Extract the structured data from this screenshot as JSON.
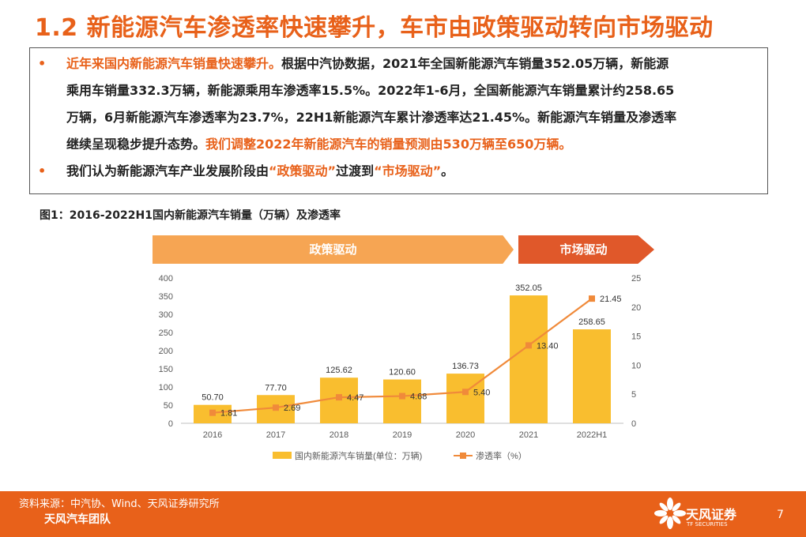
{
  "slide": {
    "title": "1.2 新能源汽车渗透率快速攀升，车市由政策驱动转向市场驱动",
    "bullets": {
      "b1_lead": "近年来国内新能源汽车销量快速攀升。",
      "b1_l1_rest": "根据中汽协数据，2021年全国新能源汽车销量352.05万辆，新能源",
      "b1_l2": "乘用车销量332.3万辆，新能源乘用车渗透率15.5%。2022年1-6月，全国新能源汽车销量累计约258.65",
      "b1_l3": "万辆，6月新能源汽车渗透率为23.7%，22H1新能源汽车累计渗透率达21.45%。新能源汽车销量及渗透率",
      "b1_l4_a": "继续呈现稳步提升态势。",
      "b1_l4_b": "我们调整2022年新能源汽车的销量预测由530万辆至650万辆。",
      "b2_a": "我们认为新能源汽车产业发展阶段由",
      "b2_b": "“政策驱动”",
      "b2_c": "过渡到",
      "b2_d": "“市场驱动”",
      "b2_e": "。",
      "marker": "•"
    },
    "figure_caption": "图1：2016-2022H1国内新能源汽车销量（万辆）及渗透率",
    "phases": {
      "policy": "政策驱动",
      "market": "市场驱动"
    },
    "footer": {
      "source": "资料来源：中汽协、Wind、天风证券研究所",
      "team": "天风汽车团队",
      "logo_cn": "天风证券",
      "logo_en": "TF SECURITIES",
      "page": "7"
    },
    "colors": {
      "accent": "#e8611a",
      "bar": "#f9be2f",
      "line": "#f08a3a",
      "policy_arrow": "#f6a553",
      "market_arrow": "#e0582a"
    }
  },
  "chart_data": {
    "type": "bar",
    "categories": [
      "2016",
      "2017",
      "2018",
      "2019",
      "2020",
      "2021",
      "2022H1"
    ],
    "series": [
      {
        "name": "国内新能源汽车销量(单位：万辆)",
        "type": "bar",
        "axis": "left",
        "values": [
          50.7,
          77.7,
          125.62,
          120.6,
          136.73,
          352.05,
          258.65
        ],
        "labels": [
          "50.70",
          "77.70",
          "125.62",
          "120.60",
          "136.73",
          "352.05",
          "258.65"
        ]
      },
      {
        "name": "渗透率（%）",
        "type": "line",
        "axis": "right",
        "values": [
          1.81,
          2.69,
          4.47,
          4.68,
          5.4,
          13.4,
          21.45
        ],
        "labels": [
          "1.81",
          "2.69",
          "4.47",
          "4.68",
          "5.40",
          "13.40",
          "21.45"
        ]
      }
    ],
    "ylim_left": [
      0,
      400
    ],
    "yticks_left": [
      "0",
      "50",
      "100",
      "150",
      "200",
      "250",
      "300",
      "350",
      "400"
    ],
    "ylim_right": [
      0,
      25
    ],
    "yticks_right": [
      "0",
      "5",
      "10",
      "15",
      "20",
      "25"
    ],
    "grid": false,
    "legend": "bottom"
  }
}
